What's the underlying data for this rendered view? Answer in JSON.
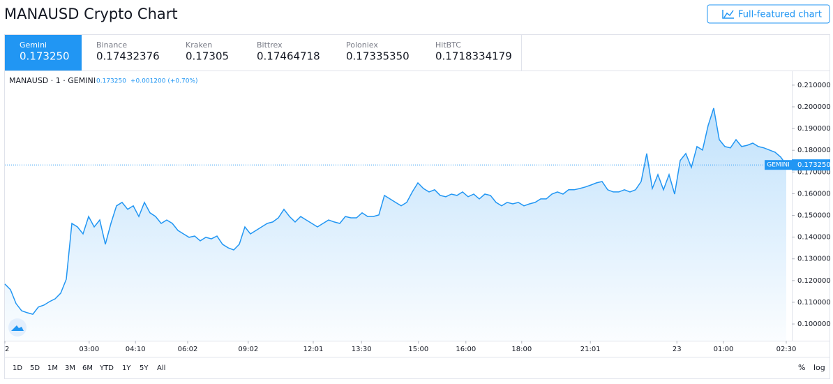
{
  "header": {
    "title": "MANAUSD Crypto Chart",
    "button": "Full-featured chart"
  },
  "exchanges": [
    {
      "name": "Gemini",
      "price": "0.173250",
      "active": true
    },
    {
      "name": "Binance",
      "price": "0.17432376"
    },
    {
      "name": "Kraken",
      "price": "0.17305"
    },
    {
      "name": "Bittrex",
      "price": "0.17464718"
    },
    {
      "name": "Poloniex",
      "price": "0.17335350"
    },
    {
      "name": "HitBTC",
      "price": "0.1718334179"
    }
  ],
  "chart_data": {
    "type": "line",
    "legend": {
      "symbol": "MANAUSD · 1 · GEMINI",
      "price": "0.173250",
      "change": "+0.001200 (+0.70%)"
    },
    "color": "#2196f3",
    "values": [
      0.1184,
      0.1158,
      0.1094,
      0.1061,
      0.1052,
      0.1045,
      0.1078,
      0.1087,
      0.1103,
      0.1116,
      0.1142,
      0.1206,
      0.1463,
      0.1447,
      0.1415,
      0.1495,
      0.1447,
      0.1479,
      0.1367,
      0.1463,
      0.1544,
      0.156,
      0.1528,
      0.1544,
      0.1495,
      0.156,
      0.1512,
      0.1495,
      0.1463,
      0.1479,
      0.1463,
      0.1431,
      0.1415,
      0.1399,
      0.1405,
      0.1383,
      0.1399,
      0.1392,
      0.1405,
      0.1367,
      0.1351,
      0.1341,
      0.1367,
      0.1447,
      0.1415,
      0.1431,
      0.1447,
      0.1463,
      0.147,
      0.1489,
      0.1528,
      0.1495,
      0.147,
      0.1495,
      0.1479,
      0.1463,
      0.1447,
      0.1463,
      0.1479,
      0.147,
      0.1463,
      0.1495,
      0.1489,
      0.1489,
      0.1512,
      0.1495,
      0.1495,
      0.1502,
      0.1592,
      0.1576,
      0.156,
      0.1544,
      0.156,
      0.1608,
      0.165,
      0.1624,
      0.1608,
      0.1618,
      0.1592,
      0.1586,
      0.1598,
      0.1592,
      0.1608,
      0.1586,
      0.1598,
      0.1576,
      0.1598,
      0.1592,
      0.156,
      0.1544,
      0.156,
      0.1553,
      0.156,
      0.1544,
      0.1553,
      0.156,
      0.1576,
      0.1576,
      0.1598,
      0.1608,
      0.1598,
      0.1618,
      0.1618,
      0.1624,
      0.1631,
      0.164,
      0.165,
      0.1656,
      0.1618,
      0.1608,
      0.1608,
      0.1618,
      0.1608,
      0.1618,
      0.1656,
      0.1785,
      0.1624,
      0.1688,
      0.1618,
      0.1688,
      0.1598,
      0.1753,
      0.1785,
      0.1721,
      0.1817,
      0.1801,
      0.1914,
      0.1994,
      0.1849,
      0.1817,
      0.1811,
      0.1849,
      0.1817,
      0.1823,
      0.1833,
      0.1817,
      0.1811,
      0.1801,
      0.1791,
      0.1769,
      0.1733
    ],
    "xlim": [
      0,
      141
    ],
    "xticks": [
      {
        "value": 0,
        "label": "2"
      },
      {
        "value": 15.1,
        "label": "03:00"
      },
      {
        "value": 23.4,
        "label": "04:10"
      },
      {
        "value": 32.75,
        "label": "06:02"
      },
      {
        "value": 43.6,
        "label": "09:02"
      },
      {
        "value": 55.25,
        "label": "12:01"
      },
      {
        "value": 63.9,
        "label": "13:30"
      },
      {
        "value": 74.1,
        "label": "15:00"
      },
      {
        "value": 82.6,
        "label": "16:00"
      },
      {
        "value": 92.6,
        "label": "18:00"
      },
      {
        "value": 104.9,
        "label": "21:01"
      },
      {
        "value": 120.4,
        "label": "23"
      },
      {
        "value": 128.75,
        "label": "01:00"
      },
      {
        "value": 140,
        "label": "02:30"
      }
    ],
    "ylim": [
      0.0923,
      0.2164
    ],
    "yticks": [
      {
        "value": 0.1,
        "label": "0.100000"
      },
      {
        "value": 0.11,
        "label": "0.110000"
      },
      {
        "value": 0.12,
        "label": "0.120000"
      },
      {
        "value": 0.13,
        "label": "0.130000"
      },
      {
        "value": 0.14,
        "label": "0.140000"
      },
      {
        "value": 0.15,
        "label": "0.150000"
      },
      {
        "value": 0.16,
        "label": "0.160000"
      },
      {
        "value": 0.17,
        "label": "0.170000"
      },
      {
        "value": 0.18,
        "label": "0.180000"
      },
      {
        "value": 0.19,
        "label": "0.190000"
      },
      {
        "value": 0.2,
        "label": "0.200000"
      },
      {
        "value": 0.21,
        "label": "0.210000"
      }
    ],
    "last": {
      "value": 0.17325,
      "label": "0.173250",
      "tag": "GEMINI"
    }
  },
  "ranges": [
    "1D",
    "5D",
    "1M",
    "3M",
    "6M",
    "YTD",
    "1Y",
    "5Y",
    "All"
  ],
  "scale_buttons": [
    "%",
    "log"
  ]
}
